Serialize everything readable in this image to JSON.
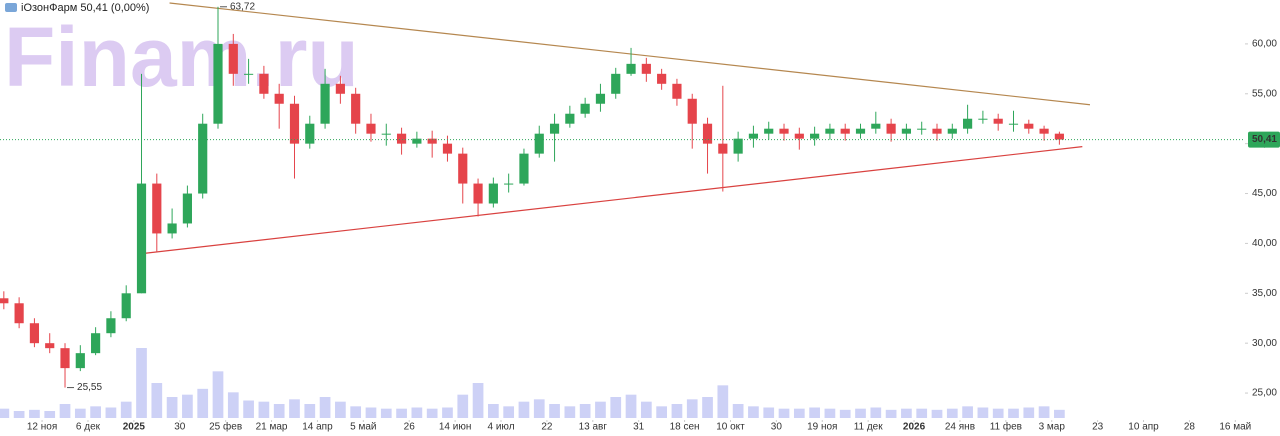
{
  "chart_data": {
    "type": "candlestick",
    "title": "iОзонФарм 50,41 (0,00%)",
    "watermark": "Finam.ru",
    "up_color": "#2ea65a",
    "down_color": "#e5444b",
    "volume_color": "#cdd1f6",
    "xlim": [
      -16.5,
      471.8
    ],
    "ylim": [
      22.5,
      64.4
    ],
    "xticks": [
      {
        "value": 0,
        "label": "12 ноя"
      },
      {
        "value": 18,
        "label": "6 дек"
      },
      {
        "value": 36,
        "label": "2025"
      },
      {
        "value": 54,
        "label": "30"
      },
      {
        "value": 72,
        "label": "25 фев"
      },
      {
        "value": 90,
        "label": "21 мар"
      },
      {
        "value": 108,
        "label": "14 апр"
      },
      {
        "value": 126,
        "label": "5 май"
      },
      {
        "value": 144,
        "label": "26"
      },
      {
        "value": 162,
        "label": "14 июн"
      },
      {
        "value": 180,
        "label": "4 июл"
      },
      {
        "value": 198,
        "label": "22"
      },
      {
        "value": 216,
        "label": "13 авг"
      },
      {
        "value": 234,
        "label": "31"
      },
      {
        "value": 252,
        "label": "18 сен"
      },
      {
        "value": 270,
        "label": "10 окт"
      },
      {
        "value": 288,
        "label": "30"
      },
      {
        "value": 306,
        "label": "19 ноя"
      },
      {
        "value": 324,
        "label": "11 дек"
      },
      {
        "value": 342,
        "label": "2026"
      },
      {
        "value": 360,
        "label": "24 янв"
      },
      {
        "value": 378,
        "label": "11 фев"
      },
      {
        "value": 396,
        "label": "3 мар"
      },
      {
        "value": 414,
        "label": "23"
      },
      {
        "value": 432,
        "label": "10 апр"
      },
      {
        "value": 450,
        "label": "28"
      },
      {
        "value": 468,
        "label": "16 май"
      }
    ],
    "yticks": [
      {
        "value": 25,
        "label": "25,00"
      },
      {
        "value": 30,
        "label": "30,00"
      },
      {
        "value": 35,
        "label": "35,00"
      },
      {
        "value": 40,
        "label": "40,00"
      },
      {
        "value": 45,
        "label": "45,00"
      },
      {
        "value": 50,
        "label": "50,00"
      },
      {
        "value": 55,
        "label": "55,00"
      },
      {
        "value": 60,
        "label": "60,00"
      }
    ],
    "grid": false,
    "x": [
      -15,
      -9,
      -3,
      3,
      9,
      15,
      21,
      27,
      33,
      39,
      45,
      51,
      57,
      63,
      69,
      75,
      81,
      87,
      93,
      99,
      105,
      111,
      117,
      123,
      129,
      135,
      141,
      147,
      153,
      159,
      165,
      171,
      177,
      183,
      189,
      195,
      201,
      207,
      213,
      219,
      225,
      231,
      237,
      243,
      249,
      255,
      261,
      267,
      273,
      279,
      285,
      291,
      297,
      303,
      309,
      315,
      321,
      327,
      333,
      339,
      345,
      351,
      357,
      363,
      369,
      375,
      381,
      387,
      393,
      399
    ],
    "open": [
      34.5,
      34,
      32,
      30,
      29.5,
      27.5,
      29,
      31,
      32.5,
      35,
      46,
      41,
      42,
      45,
      52,
      60,
      57,
      57,
      55,
      54,
      50,
      52,
      56,
      55,
      52,
      51,
      51,
      50,
      50.5,
      50,
      49,
      46,
      44,
      46,
      46,
      49,
      51,
      52,
      53,
      54,
      55,
      57,
      58,
      57,
      56,
      54.5,
      52,
      50,
      49,
      50.5,
      51,
      51.5,
      51,
      50.5,
      51,
      51.5,
      51,
      51.5,
      52,
      51,
      51.5,
      51.5,
      51,
      51.5,
      52.5,
      52.5,
      52,
      52,
      51.5,
      51
    ],
    "high": [
      35.2,
      34.6,
      32.5,
      31,
      30,
      29.8,
      31.6,
      33.2,
      35.8,
      57,
      47,
      43.5,
      45.8,
      53,
      63.72,
      61,
      58.5,
      57.8,
      56,
      54.8,
      52.8,
      57.5,
      56.8,
      55.6,
      53,
      52,
      51.6,
      51.2,
      51.3,
      50.8,
      49.6,
      46.5,
      46.6,
      47,
      49.5,
      51.8,
      53,
      53.8,
      54.6,
      56,
      57.6,
      59.6,
      58.6,
      57.5,
      56.5,
      55,
      52.6,
      55.8,
      51.2,
      51.8,
      52.2,
      52,
      51.6,
      51.7,
      52,
      52,
      52,
      53.2,
      52.5,
      52,
      52.2,
      52,
      52,
      53.9,
      53.3,
      53,
      53.3,
      52.4,
      51.8,
      51.2
    ],
    "low": [
      33.4,
      31.5,
      29.6,
      29,
      25.55,
      27.2,
      28.8,
      30.6,
      32.2,
      35,
      39.2,
      40.5,
      41.6,
      44.5,
      51.5,
      55.8,
      56,
      54.5,
      51.5,
      46.5,
      49.5,
      51.5,
      54,
      51,
      50.2,
      49.8,
      48.9,
      49.6,
      48.6,
      48.2,
      44,
      42.7,
      43.6,
      45.1,
      45.8,
      48.6,
      48.2,
      51.6,
      52.6,
      53.2,
      54.5,
      56.8,
      56.2,
      55.4,
      53.8,
      49.5,
      47,
      45.2,
      48.2,
      49.6,
      50.4,
      50.3,
      49.4,
      49.8,
      50.4,
      50.3,
      50.5,
      51,
      50.2,
      50.4,
      50.9,
      50.3,
      50.5,
      51,
      52,
      51.3,
      51.2,
      51,
      50.3,
      49.9
    ],
    "close": [
      34,
      32,
      30,
      29.5,
      27.5,
      29,
      31,
      32.5,
      35,
      46,
      41,
      42,
      45,
      52,
      60,
      57,
      57,
      55,
      54,
      50,
      52,
      56,
      55,
      52,
      51,
      51,
      50,
      50.5,
      50,
      49,
      46,
      44,
      46,
      46,
      49,
      51,
      52,
      53,
      54,
      55,
      57,
      58,
      57,
      56,
      54.5,
      52,
      50,
      49,
      50.5,
      51,
      51.5,
      51,
      50.5,
      51,
      51.5,
      51,
      51.5,
      52,
      51,
      51.5,
      51.5,
      51,
      51.5,
      52.5,
      52.5,
      52,
      52,
      51.5,
      51,
      50.41
    ],
    "volume": [
      8,
      6,
      7,
      6,
      12,
      8,
      10,
      9,
      14,
      60,
      30,
      18,
      20,
      25,
      40,
      22,
      15,
      14,
      12,
      16,
      12,
      18,
      14,
      10,
      9,
      8,
      8,
      9,
      8,
      9,
      20,
      30,
      12,
      10,
      14,
      16,
      12,
      10,
      12,
      14,
      18,
      20,
      14,
      10,
      12,
      16,
      18,
      28,
      12,
      10,
      9,
      8,
      8,
      9,
      8,
      7,
      8,
      9,
      7,
      8,
      8,
      7,
      8,
      10,
      9,
      8,
      8,
      9,
      10,
      7
    ],
    "last_price": {
      "value": 50.41,
      "label": "50,41",
      "color": "#2ea65a"
    },
    "annotations": [
      {
        "x": 69,
        "value": 63.72,
        "label": "63,72"
      },
      {
        "x": 9,
        "value": 25.55,
        "label": "25,55"
      }
    ],
    "trendlines": [
      {
        "color": "#b5874f",
        "x": [
          50,
          411
        ],
        "y": [
          64.1,
          53.9
        ]
      },
      {
        "color": "#d9413f",
        "x": [
          40,
          408
        ],
        "y": [
          39,
          49.7
        ]
      }
    ]
  }
}
